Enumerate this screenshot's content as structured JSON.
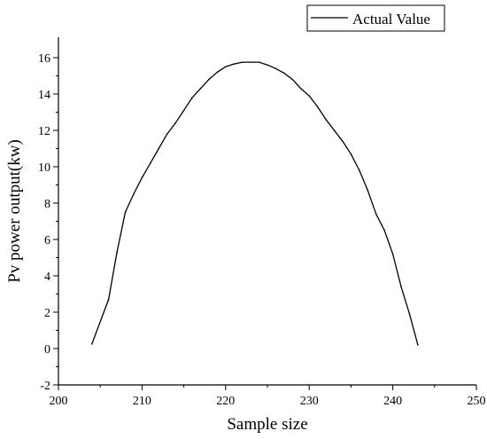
{
  "chart_data": {
    "type": "line",
    "title": "",
    "xlabel": "Sample size",
    "ylabel": "Pv power output(kw)",
    "xlim": [
      200,
      250
    ],
    "ylim": [
      -2,
      17
    ],
    "xticks": [
      200,
      210,
      220,
      230,
      240,
      250
    ],
    "yticks": [
      -2,
      0,
      2,
      4,
      6,
      8,
      10,
      12,
      14,
      16
    ],
    "grid": false,
    "legend_position": "top-right",
    "series": [
      {
        "name": "Actual Value",
        "color": "#000000",
        "x": [
          204,
          206,
          207,
          208,
          209,
          210,
          211,
          212,
          213,
          214,
          215,
          216,
          217,
          218,
          219,
          220,
          221,
          222,
          223,
          224,
          225,
          226,
          227,
          228,
          229,
          230,
          231,
          232,
          233,
          234,
          235,
          236,
          237,
          238,
          239,
          240,
          241,
          242,
          243
        ],
        "y": [
          0.25,
          2.7,
          5.3,
          7.5,
          8.5,
          9.4,
          10.2,
          11.0,
          11.8,
          12.4,
          13.1,
          13.8,
          14.3,
          14.8,
          15.2,
          15.5,
          15.65,
          15.75,
          15.75,
          15.75,
          15.6,
          15.4,
          15.15,
          14.8,
          14.3,
          13.9,
          13.3,
          12.6,
          12.0,
          11.4,
          10.7,
          9.8,
          8.7,
          7.4,
          6.5,
          5.2,
          3.4,
          1.9,
          0.2
        ]
      }
    ]
  }
}
